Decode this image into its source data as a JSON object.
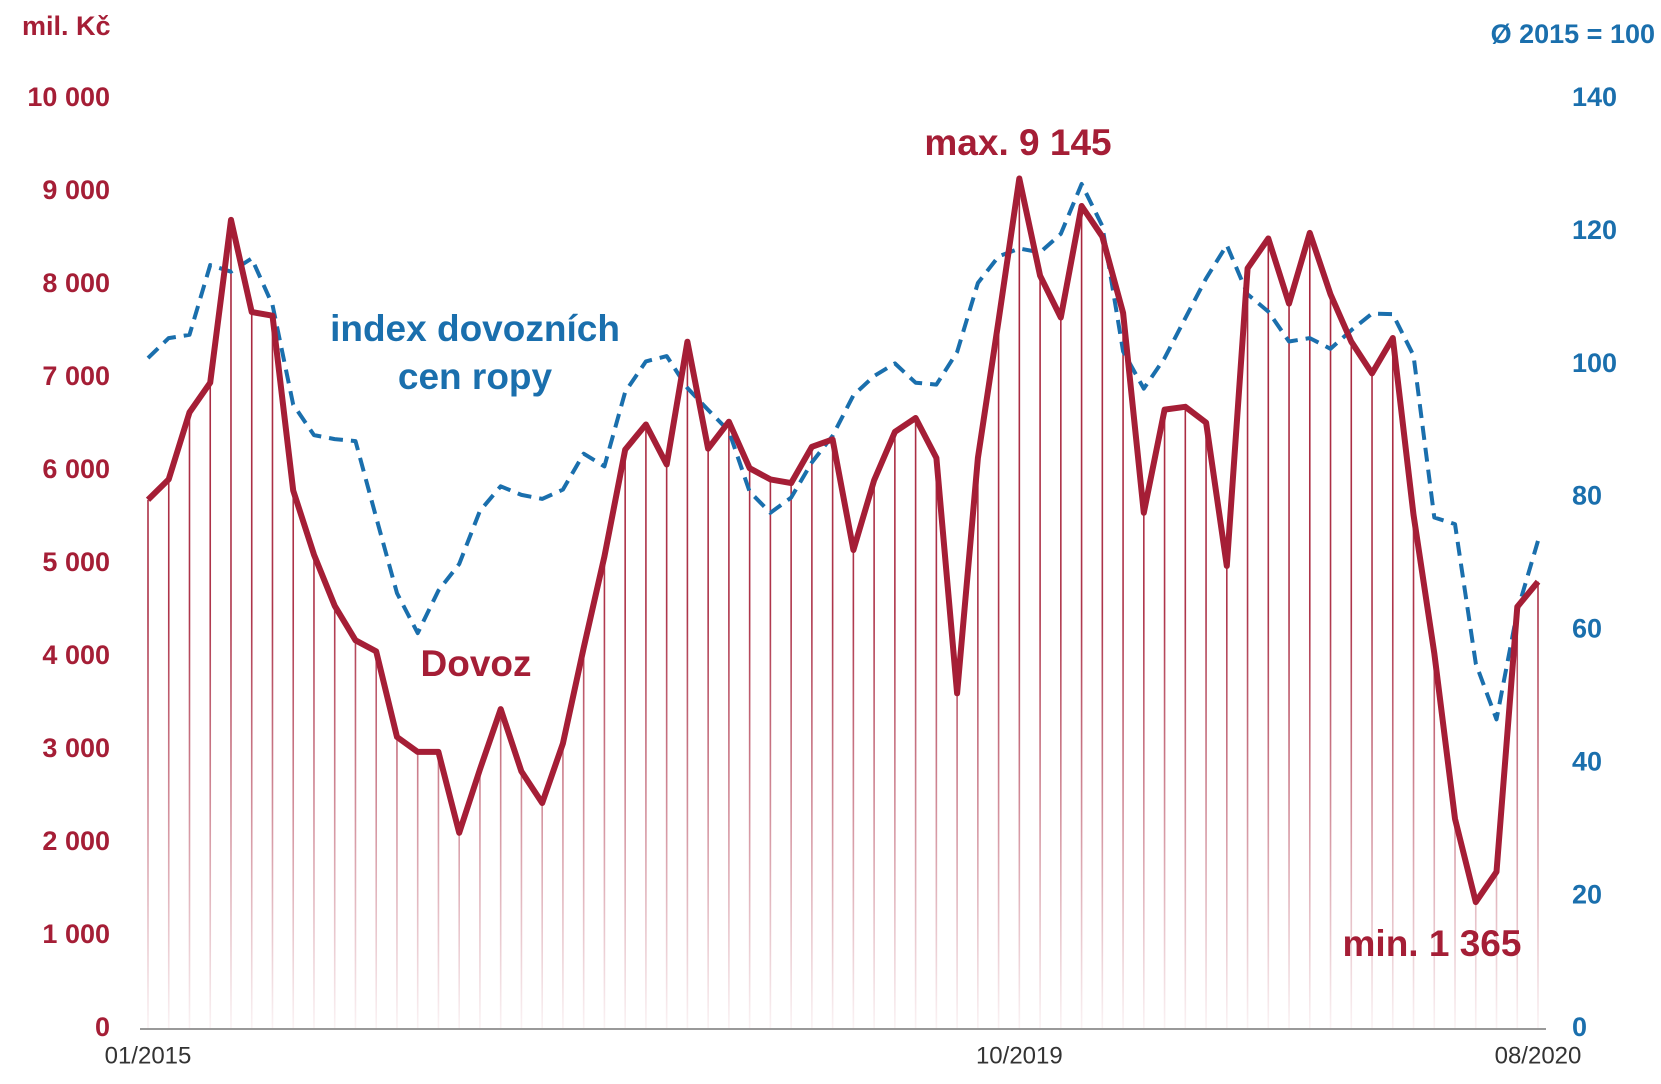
{
  "chart_data": {
    "type": "line",
    "y_label": "mil. Kč",
    "y2_label": "Ø 2015 = 100",
    "annotations": [
      "max. 9 145",
      "min. 1 365"
    ],
    "categories": [
      "01/2015",
      null,
      null,
      null,
      null,
      null,
      null,
      null,
      null,
      null,
      null,
      null,
      null,
      null,
      null,
      null,
      null,
      null,
      null,
      null,
      null,
      null,
      null,
      null,
      null,
      null,
      null,
      null,
      null,
      null,
      null,
      null,
      null,
      null,
      null,
      null,
      null,
      null,
      null,
      null,
      null,
      null,
      "10/2019",
      null,
      null,
      null,
      null,
      null,
      null,
      null,
      null,
      null,
      null,
      null,
      null,
      null,
      null,
      null,
      null,
      null,
      null,
      null,
      null,
      null,
      null,
      null,
      null,
      "08/2020"
    ],
    "series": [
      {
        "name": "Dovoz",
        "color": "#a51e36",
        "style": "solid",
        "drop_lines": true,
        "values": [
          5690,
          5910,
          6630,
          6950,
          8700,
          7710,
          7670,
          5790,
          5100,
          4550,
          4180,
          4060,
          3140,
          2980,
          2980,
          2110,
          2790,
          3440,
          2770,
          2430,
          3070,
          4100,
          5080,
          6230,
          6500,
          6070,
          7390,
          6240,
          6530,
          6030,
          5910,
          5870,
          6260,
          6340,
          5150,
          5900,
          6420,
          6570,
          6140,
          3610,
          6140,
          7620,
          9145,
          8100,
          7650,
          8850,
          8520,
          7700,
          5550,
          6660,
          6690,
          6520,
          4980,
          8180,
          8500,
          7800,
          8560,
          7900,
          7390,
          7050,
          7430,
          5530,
          4040,
          2260,
          1365,
          1690,
          4540,
          4810
        ]
      },
      {
        "name": "index dovozních cen ropy",
        "color": "#1a6fad",
        "style": "dashed",
        "axis": "y2",
        "values": [
          101,
          104,
          104.5,
          115,
          114,
          116,
          109,
          94,
          89.4,
          88.8,
          88.5,
          77,
          65.6,
          59.6,
          66,
          70,
          78,
          81.7,
          80.4,
          79.8,
          81.2,
          86.6,
          84.7,
          95.9,
          100.5,
          101.3,
          96.5,
          93.2,
          90,
          80.9,
          77.7,
          80,
          85.3,
          89.3,
          95.4,
          98.3,
          100.2,
          97.3,
          97,
          101.9,
          112.3,
          116.3,
          117.5,
          116.9,
          119.7,
          127.2,
          120.9,
          102,
          96.4,
          101,
          107,
          113,
          118,
          110.6,
          108,
          103.5,
          104,
          102.4,
          105.2,
          107.7,
          107.6,
          101.4,
          77,
          76,
          55,
          46.6,
          62.9,
          73.5
        ]
      }
    ],
    "ylim": [
      0,
      10000
    ],
    "yticks": [
      {
        "value": 0,
        "label": "0"
      },
      {
        "value": 1000,
        "label": "1 000"
      },
      {
        "value": 2000,
        "label": "2 000"
      },
      {
        "value": 3000,
        "label": "3 000"
      },
      {
        "value": 4000,
        "label": "4 000"
      },
      {
        "value": 5000,
        "label": "5 000"
      },
      {
        "value": 6000,
        "label": "6 000"
      },
      {
        "value": 7000,
        "label": "7 000"
      },
      {
        "value": 8000,
        "label": "8 000"
      },
      {
        "value": 9000,
        "label": "9 000"
      },
      {
        "value": 10000,
        "label": "10 000"
      }
    ],
    "y2lim": [
      0,
      140
    ],
    "y2ticks": [
      0,
      20,
      40,
      60,
      80,
      100,
      120,
      140
    ],
    "grid": false
  }
}
